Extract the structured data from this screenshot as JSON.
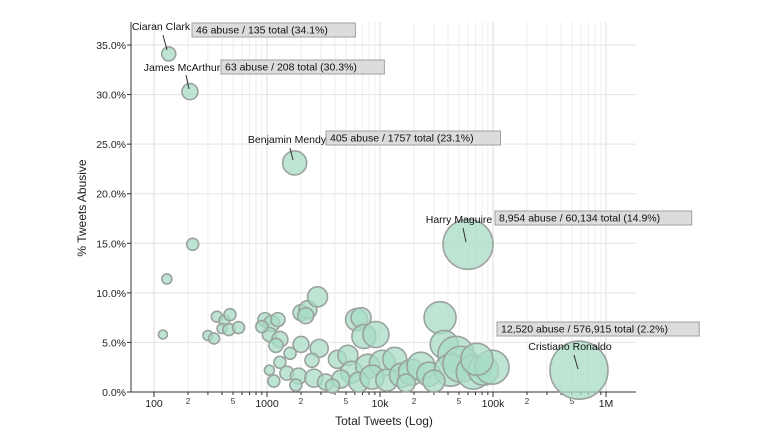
{
  "chart_data": {
    "type": "scatter",
    "xlabel": "Total Tweets (Log)",
    "ylabel": "% Tweets Abusive",
    "x_scale": "log",
    "xlim": [
      60,
      2000000
    ],
    "ylim": [
      0,
      37
    ],
    "grid": true,
    "y_ticks": [
      {
        "v": 0,
        "label": "0.0%"
      },
      {
        "v": 5,
        "label": "5.0%"
      },
      {
        "v": 10,
        "label": "10.0%"
      },
      {
        "v": 15,
        "label": "15.0%"
      },
      {
        "v": 20,
        "label": "20.0%"
      },
      {
        "v": 25,
        "label": "25.0%"
      },
      {
        "v": 30,
        "label": "30.0%"
      },
      {
        "v": 35,
        "label": "35.0%"
      }
    ],
    "x_major_ticks": [
      {
        "v": 100,
        "label": "100"
      },
      {
        "v": 1000,
        "label": "1000"
      },
      {
        "v": 10000,
        "label": "10k"
      },
      {
        "v": 100000,
        "label": "100k"
      },
      {
        "v": 1000000,
        "label": "1M"
      }
    ],
    "x_minor_ticks": [
      {
        "v": 200,
        "label": "2"
      },
      {
        "v": 500,
        "label": "5"
      },
      {
        "v": 2000,
        "label": "2"
      },
      {
        "v": 5000,
        "label": "5"
      },
      {
        "v": 20000,
        "label": "2"
      },
      {
        "v": 50000,
        "label": "5"
      },
      {
        "v": 200000,
        "label": "2"
      },
      {
        "v": 500000,
        "label": "5"
      }
    ],
    "point_color": "#a8dcc6",
    "point_edge": "#9aa29e",
    "annotations": [
      {
        "name": "Ciaran Clark",
        "box": "46 abuse / 135 total (34.1%)",
        "x": 135,
        "y": 34.1
      },
      {
        "name": "James McArthur",
        "box": "63 abuse / 208 total (30.3%)",
        "x": 208,
        "y": 30.3
      },
      {
        "name": "Benjamin Mendy",
        "box": "405 abuse / 1757 total (23.1%)",
        "x": 1757,
        "y": 23.1
      },
      {
        "name": "Harry Maguire",
        "box": "8,954 abuse / 60,134 total (14.9%)",
        "x": 60134,
        "y": 14.9
      },
      {
        "name": "Cristiano Ronaldo",
        "box": "12,520 abuse / 576,915 total (2.2%)",
        "x": 576915,
        "y": 2.2
      }
    ],
    "points": [
      {
        "x": 135,
        "y": 34.1,
        "r": 7
      },
      {
        "x": 208,
        "y": 30.3,
        "r": 8
      },
      {
        "x": 1757,
        "y": 23.1,
        "r": 12
      },
      {
        "x": 60134,
        "y": 14.9,
        "r": 25
      },
      {
        "x": 576915,
        "y": 2.2,
        "r": 29
      },
      {
        "x": 220,
        "y": 14.9,
        "r": 6
      },
      {
        "x": 130,
        "y": 11.4,
        "r": 5
      },
      {
        "x": 120,
        "y": 5.8,
        "r": 4.5
      },
      {
        "x": 360,
        "y": 7.6,
        "r": 5.5
      },
      {
        "x": 420,
        "y": 7.2,
        "r": 5.5
      },
      {
        "x": 470,
        "y": 7.8,
        "r": 6
      },
      {
        "x": 400,
        "y": 6.4,
        "r": 5
      },
      {
        "x": 460,
        "y": 6.3,
        "r": 6
      },
      {
        "x": 560,
        "y": 6.5,
        "r": 6
      },
      {
        "x": 300,
        "y": 5.7,
        "r": 5
      },
      {
        "x": 340,
        "y": 5.4,
        "r": 5.5
      },
      {
        "x": 960,
        "y": 7.3,
        "r": 7
      },
      {
        "x": 1100,
        "y": 6.9,
        "r": 8
      },
      {
        "x": 1250,
        "y": 7.3,
        "r": 7
      },
      {
        "x": 1050,
        "y": 5.8,
        "r": 7
      },
      {
        "x": 1300,
        "y": 5.3,
        "r": 8
      },
      {
        "x": 1200,
        "y": 4.7,
        "r": 7
      },
      {
        "x": 900,
        "y": 6.6,
        "r": 6
      },
      {
        "x": 2000,
        "y": 8.0,
        "r": 8
      },
      {
        "x": 2300,
        "y": 8.3,
        "r": 9
      },
      {
        "x": 2800,
        "y": 9.6,
        "r": 10
      },
      {
        "x": 2200,
        "y": 7.7,
        "r": 8
      },
      {
        "x": 2000,
        "y": 4.8,
        "r": 8
      },
      {
        "x": 2900,
        "y": 4.4,
        "r": 9
      },
      {
        "x": 1600,
        "y": 3.9,
        "r": 6
      },
      {
        "x": 2500,
        "y": 3.2,
        "r": 7
      },
      {
        "x": 1300,
        "y": 3.0,
        "r": 6
      },
      {
        "x": 1050,
        "y": 2.2,
        "r": 5
      },
      {
        "x": 1500,
        "y": 1.9,
        "r": 7
      },
      {
        "x": 1900,
        "y": 1.6,
        "r": 8
      },
      {
        "x": 1150,
        "y": 1.1,
        "r": 6
      },
      {
        "x": 1800,
        "y": 0.7,
        "r": 6
      },
      {
        "x": 2600,
        "y": 1.4,
        "r": 9
      },
      {
        "x": 3300,
        "y": 1.0,
        "r": 8
      },
      {
        "x": 4200,
        "y": 3.3,
        "r": 9
      },
      {
        "x": 5200,
        "y": 3.7,
        "r": 10
      },
      {
        "x": 6200,
        "y": 7.3,
        "r": 11
      },
      {
        "x": 6800,
        "y": 7.5,
        "r": 10
      },
      {
        "x": 7200,
        "y": 5.6,
        "r": 12
      },
      {
        "x": 9200,
        "y": 5.8,
        "r": 13
      },
      {
        "x": 5600,
        "y": 2.0,
        "r": 11
      },
      {
        "x": 7800,
        "y": 2.6,
        "r": 12
      },
      {
        "x": 10500,
        "y": 2.9,
        "r": 13
      },
      {
        "x": 13500,
        "y": 3.3,
        "r": 12
      },
      {
        "x": 4500,
        "y": 1.3,
        "r": 9
      },
      {
        "x": 6500,
        "y": 1.0,
        "r": 10
      },
      {
        "x": 8500,
        "y": 1.5,
        "r": 12
      },
      {
        "x": 11500,
        "y": 1.2,
        "r": 11
      },
      {
        "x": 15500,
        "y": 1.7,
        "r": 12
      },
      {
        "x": 19000,
        "y": 2.0,
        "r": 13
      },
      {
        "x": 23000,
        "y": 2.6,
        "r": 14
      },
      {
        "x": 27000,
        "y": 1.8,
        "r": 12
      },
      {
        "x": 17000,
        "y": 0.9,
        "r": 9
      },
      {
        "x": 34000,
        "y": 7.5,
        "r": 16
      },
      {
        "x": 37000,
        "y": 4.8,
        "r": 14
      },
      {
        "x": 47000,
        "y": 3.8,
        "r": 18
      },
      {
        "x": 42000,
        "y": 2.2,
        "r": 16
      },
      {
        "x": 52000,
        "y": 2.8,
        "r": 18
      },
      {
        "x": 67000,
        "y": 2.0,
        "r": 17
      },
      {
        "x": 82000,
        "y": 2.2,
        "r": 15
      },
      {
        "x": 98000,
        "y": 2.5,
        "r": 17
      },
      {
        "x": 72000,
        "y": 3.3,
        "r": 16
      },
      {
        "x": 30000,
        "y": 1.1,
        "r": 11
      },
      {
        "x": 3800,
        "y": 0.6,
        "r": 7
      }
    ]
  }
}
